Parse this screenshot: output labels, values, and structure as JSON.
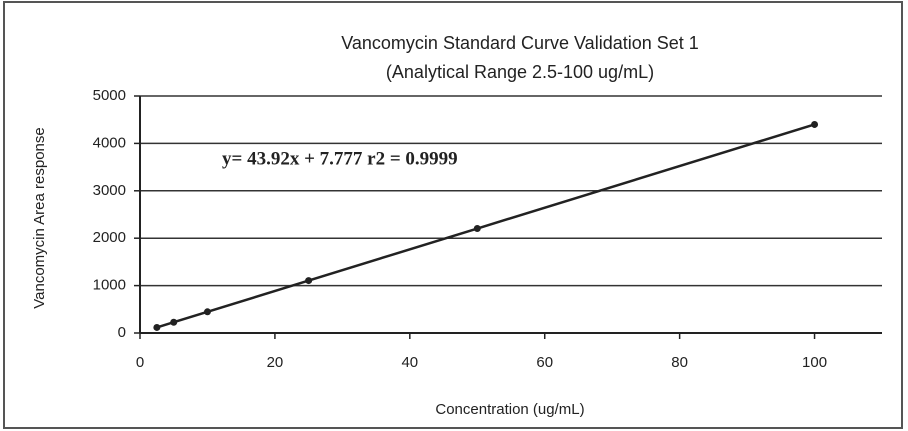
{
  "chart_data": {
    "type": "scatter",
    "title": "Vancomycin Standard Curve Validation Set 1",
    "subtitle": "(Analytical Range 2.5-100 ug/mL)",
    "xlabel": "Concentration (ug/mL)",
    "ylabel": "Vancomycin Area response",
    "annotation": "y= 43.92x + 7.777 r2 = 0.9999",
    "x": [
      2.5,
      5,
      10,
      25,
      50,
      100
    ],
    "series": [
      {
        "name": "Vancomycin",
        "color": "#222222",
        "values": [
          117,
          227,
          447,
          1106,
          2204,
          4400
        ]
      }
    ],
    "xlim": [
      0,
      110
    ],
    "xticks": [
      0,
      20,
      40,
      60,
      80,
      100
    ],
    "ylim": [
      0,
      5000
    ],
    "yticks": [
      0,
      1000,
      2000,
      3000,
      4000,
      5000
    ],
    "grid": true
  }
}
